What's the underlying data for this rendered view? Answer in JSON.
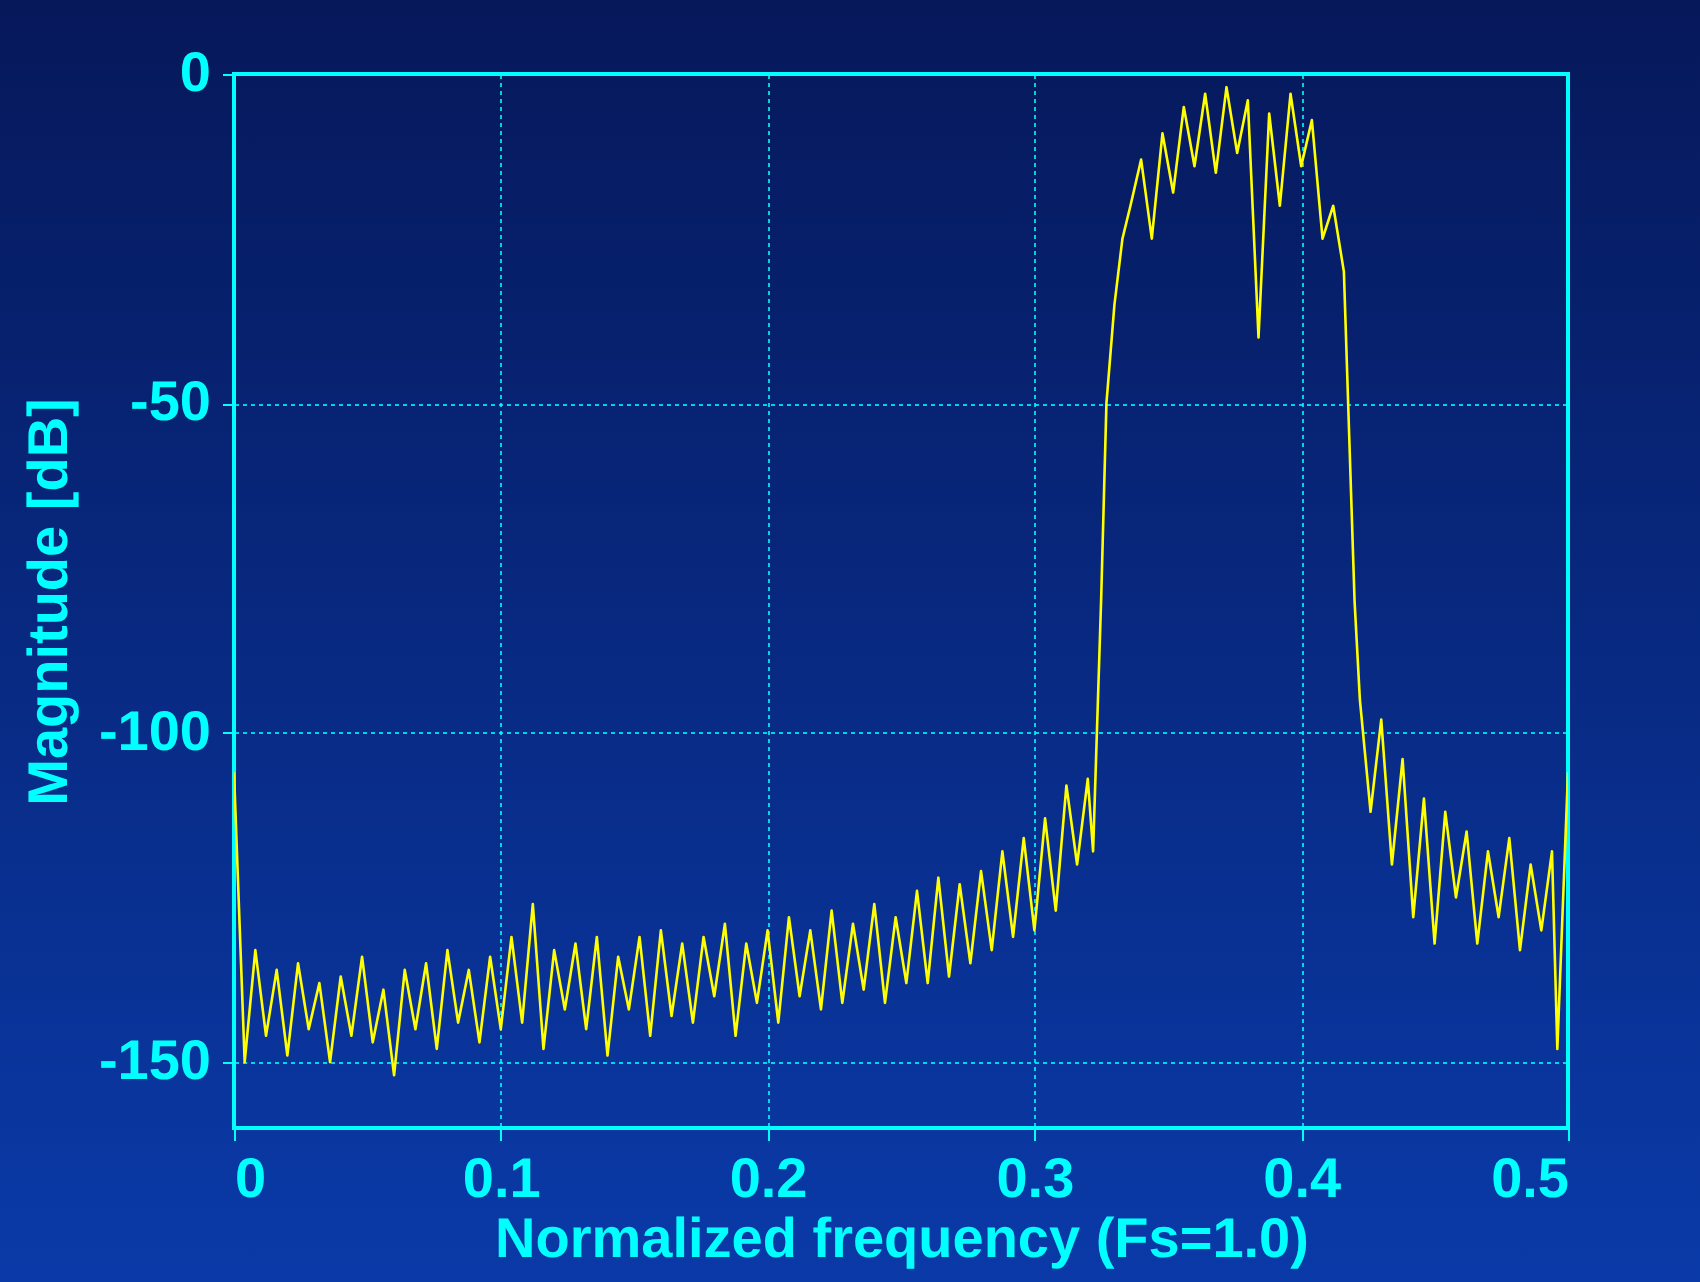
{
  "chart_data": {
    "type": "line",
    "xlabel": "Normalized frequency (Fs=1.0)",
    "ylabel": "Magnitude [dB]",
    "x": [
      0,
      0.004,
      0.008,
      0.012,
      0.016,
      0.02,
      0.024,
      0.028,
      0.032,
      0.036,
      0.04,
      0.044,
      0.048,
      0.052,
      0.056,
      0.06,
      0.064,
      0.068,
      0.072,
      0.076,
      0.08,
      0.084,
      0.088,
      0.092,
      0.096,
      0.1,
      0.104,
      0.108,
      0.112,
      0.116,
      0.12,
      0.124,
      0.128,
      0.132,
      0.136,
      0.14,
      0.144,
      0.148,
      0.152,
      0.156,
      0.16,
      0.164,
      0.168,
      0.172,
      0.176,
      0.18,
      0.184,
      0.188,
      0.192,
      0.196,
      0.2,
      0.204,
      0.208,
      0.212,
      0.216,
      0.22,
      0.224,
      0.228,
      0.232,
      0.236,
      0.24,
      0.244,
      0.248,
      0.252,
      0.256,
      0.26,
      0.264,
      0.268,
      0.272,
      0.276,
      0.28,
      0.284,
      0.288,
      0.292,
      0.296,
      0.3,
      0.304,
      0.308,
      0.312,
      0.316,
      0.32,
      0.322,
      0.325,
      0.327,
      0.33,
      0.333,
      0.336,
      0.34,
      0.344,
      0.348,
      0.352,
      0.356,
      0.36,
      0.364,
      0.368,
      0.372,
      0.376,
      0.38,
      0.384,
      0.388,
      0.392,
      0.396,
      0.4,
      0.404,
      0.408,
      0.412,
      0.416,
      0.418,
      0.42,
      0.422,
      0.426,
      0.43,
      0.434,
      0.438,
      0.442,
      0.446,
      0.45,
      0.454,
      0.458,
      0.462,
      0.466,
      0.47,
      0.474,
      0.478,
      0.482,
      0.486,
      0.49,
      0.494,
      0.496,
      0.5
    ],
    "series": [
      {
        "color": "#ffff00",
        "values": [
          -106,
          -150,
          -133,
          -146,
          -136,
          -149,
          -135,
          -145,
          -138,
          -150,
          -137,
          -146,
          -134,
          -147,
          -139,
          -152,
          -136,
          -145,
          -135,
          -148,
          -133,
          -144,
          -136,
          -147,
          -134,
          -145,
          -131,
          -144,
          -126,
          -148,
          -133,
          -142,
          -132,
          -145,
          -131,
          -149,
          -134,
          -142,
          -131,
          -146,
          -130,
          -143,
          -132,
          -144,
          -131,
          -140,
          -129,
          -146,
          -132,
          -141,
          -130,
          -144,
          -128,
          -140,
          -130,
          -142,
          -127,
          -141,
          -129,
          -139,
          -126,
          -141,
          -128,
          -138,
          -124,
          -138,
          -122,
          -137,
          -123,
          -135,
          -121,
          -133,
          -118,
          -131,
          -116,
          -130,
          -113,
          -127,
          -108,
          -120,
          -107,
          -118,
          -80,
          -50,
          -35,
          -25,
          -20,
          -13,
          -25,
          -9,
          -18,
          -5,
          -14,
          -3,
          -15,
          -2,
          -12,
          -4,
          -40,
          -6,
          -20,
          -3,
          -14,
          -7,
          -25,
          -20,
          -30,
          -55,
          -80,
          -95,
          -112,
          -98,
          -120,
          -104,
          -128,
          -110,
          -132,
          -112,
          -125,
          -115,
          -132,
          -118,
          -128,
          -116,
          -133,
          -120,
          -130,
          -118,
          -148,
          -106
        ]
      }
    ],
    "xlim": [
      0,
      0.5
    ],
    "xticks": [
      0,
      0.1,
      0.2,
      0.3,
      0.4,
      0.5
    ],
    "ylim": [
      -160,
      0
    ],
    "yticks": [
      0,
      -50,
      -100,
      -150
    ],
    "grid": true
  }
}
